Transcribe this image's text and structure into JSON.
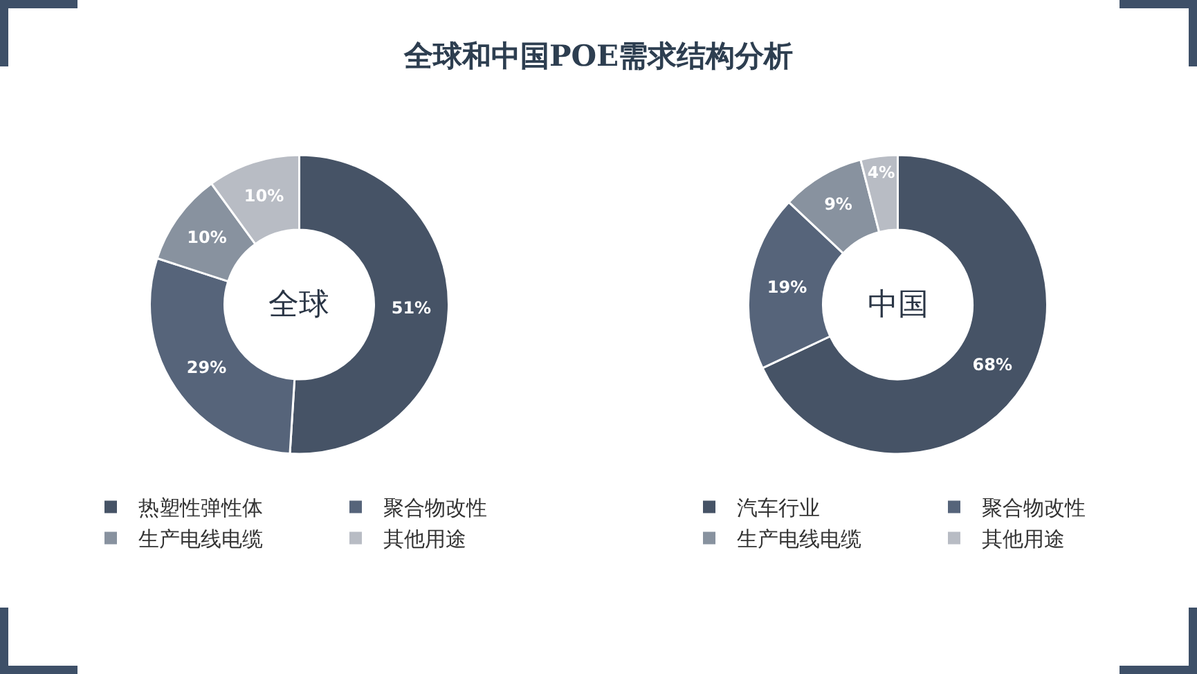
{
  "chart_data": [
    {
      "type": "donut",
      "title": "全球和中国POE需求结构分析",
      "annotations": [
        "全球"
      ],
      "categories": [
        "热塑性弹性体",
        "聚合物改性",
        "生产电线电缆",
        "其他用途"
      ],
      "values": [
        51,
        29,
        10,
        10
      ],
      "value_labels": [
        "51%",
        "29%",
        "10%",
        "10%"
      ],
      "colors": [
        "#465366",
        "#56647a",
        "#88929f",
        "#b8bcc4"
      ],
      "legend": "bottom"
    },
    {
      "type": "donut",
      "annotations": [
        "中国"
      ],
      "categories": [
        "汽车行业",
        "聚合物改性",
        "生产电线电缆",
        "其他用途"
      ],
      "values": [
        68,
        19,
        9,
        4
      ],
      "value_labels": [
        "68%",
        "19%",
        "9%",
        "4%"
      ],
      "colors": [
        "#465366",
        "#56647a",
        "#88929f",
        "#b8bcc4"
      ],
      "legend": "bottom"
    }
  ]
}
